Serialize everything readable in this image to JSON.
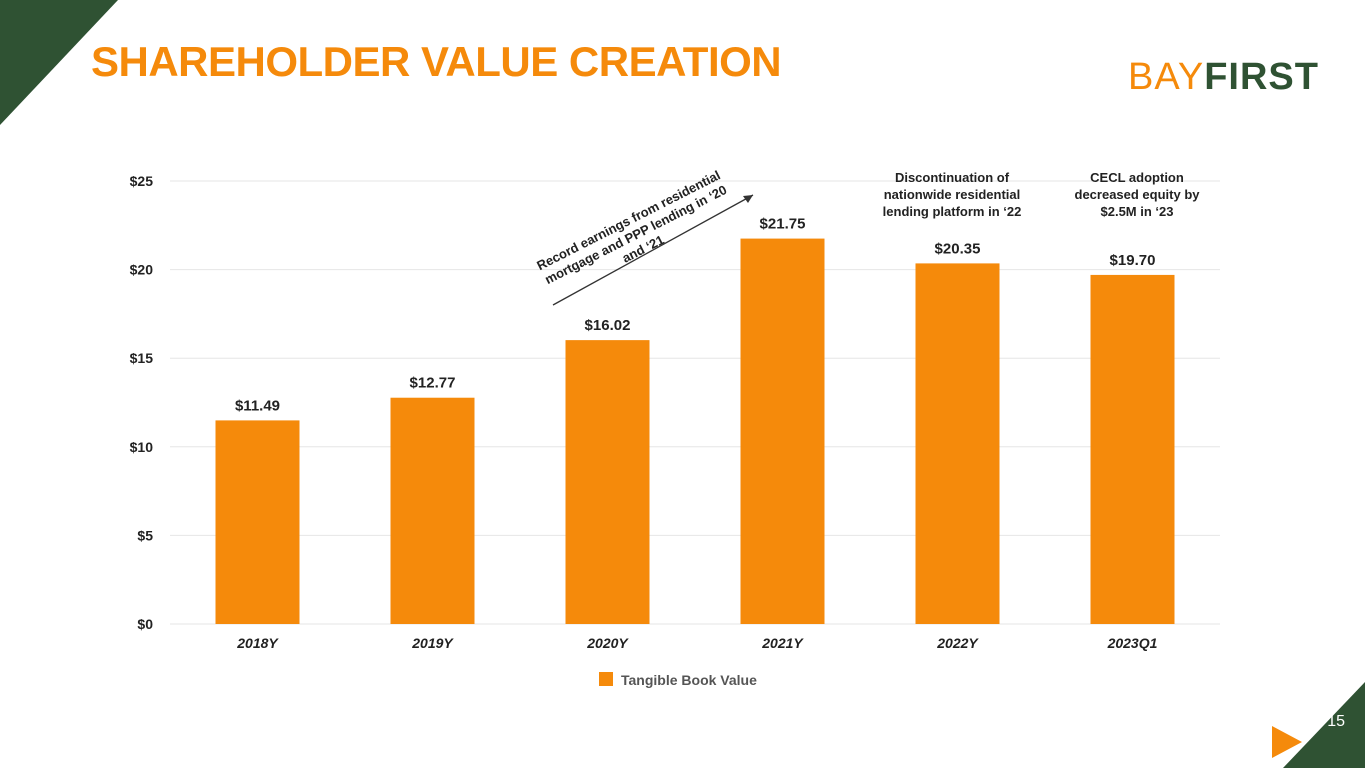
{
  "slide": {
    "title": "SHAREHOLDER VALUE CREATION",
    "page_number": "15",
    "accent_color": "#f58a0b",
    "brand_green": "#2f5233"
  },
  "logo": {
    "part1": "BAY",
    "part2": "FIRST"
  },
  "annotations": {
    "record_earnings": "Record earnings from residential mortgage and PPP lending in ‘20 and ‘21",
    "discontinuation": "Discontinuation of nationwide residential lending platform in ‘22",
    "cecl": "CECL adoption decreased equity by $2.5M in ‘23"
  },
  "chart_data": {
    "type": "bar",
    "categories": [
      "2018Y",
      "2019Y",
      "2020Y",
      "2021Y",
      "2022Y",
      "2023Q1"
    ],
    "series": [
      {
        "name": "Tangible Book Value",
        "values": [
          11.49,
          12.77,
          16.02,
          21.75,
          20.35,
          19.7
        ],
        "color": "#f58a0b"
      }
    ],
    "data_labels": [
      "$11.49",
      "$12.77",
      "$16.02",
      "$21.75",
      "$20.35",
      "$19.70"
    ],
    "y_ticks": [
      0,
      5,
      10,
      15,
      20,
      25
    ],
    "y_tick_labels": [
      "$0",
      "$5",
      "$10",
      "$15",
      "$20",
      "$25"
    ],
    "ylim": [
      0,
      25
    ],
    "grid": true,
    "legend": "bottom-center",
    "title": "",
    "xlabel": "",
    "ylabel": ""
  }
}
